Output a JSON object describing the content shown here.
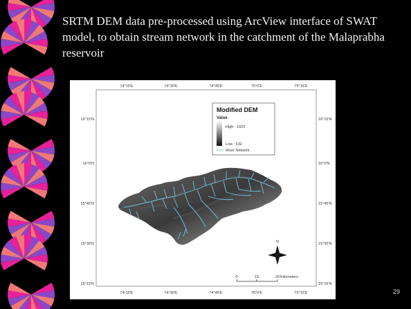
{
  "slide": {
    "title": "SRTM DEM data pre-processed using ArcView interface of SWAT model, to obtain stream network in the catchment of the Malaprabha reservoir",
    "number": "29"
  },
  "map": {
    "top_ticks": [
      "74°15'E",
      "74°30'E",
      "74°45'E",
      "75°0'E",
      "75°15'E"
    ],
    "bottom_ticks": [
      "74°15'E",
      "74°30'E",
      "74°45'E",
      "75°0'E",
      "75°15'E"
    ],
    "left_ticks": [
      "16°15'N",
      "16°0'N",
      "15°45'N",
      "15°30'N",
      "15°15'N"
    ],
    "right_ticks": [
      "16°15'N",
      "16°0'N",
      "15°45'N",
      "15°30'N",
      "15°15'N"
    ],
    "legend": {
      "title": "Modified DEM",
      "value_label": "Value",
      "high": "High : 1023",
      "low": "Low : 632",
      "river": "River Network"
    },
    "north_label": "N",
    "scalebar": {
      "labels": [
        "0",
        "10",
        "20"
      ],
      "unit": "Kilometers"
    }
  },
  "colors": {
    "background": "#000000",
    "fan_magenta": "#e8209a",
    "fan_violet": "#8a48c8",
    "fan_salmon": "#f07878",
    "river": "#6fc7e8"
  }
}
